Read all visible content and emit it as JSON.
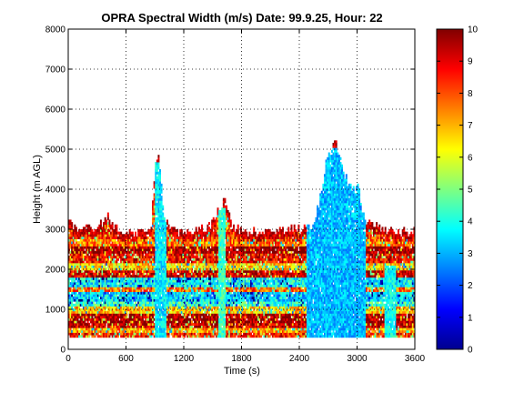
{
  "chart_data": {
    "type": "heatmap",
    "title": "OPRA Spectral Width (m/s)  Date: 99.9.25, Hour: 22",
    "xlabel": "Time (s)",
    "ylabel": "Height (m AGL)",
    "xlim": [
      0,
      3600
    ],
    "ylim": [
      0,
      8000
    ],
    "x_ticks": [
      "0",
      "600",
      "1200",
      "1800",
      "2400",
      "3000",
      "3600"
    ],
    "y_ticks": [
      "0",
      "1000",
      "2000",
      "3000",
      "4000",
      "5000",
      "6000",
      "7000",
      "8000"
    ],
    "grid": true,
    "colorbar": {
      "range": [
        0,
        10
      ],
      "ticks": [
        "0",
        "1",
        "2",
        "3",
        "4",
        "5",
        "6",
        "7",
        "8",
        "9",
        "10"
      ],
      "colormap": "jet"
    },
    "cell": {
      "dt_s": 15,
      "dz_m": 60
    },
    "background_layers": [
      {
        "z_from": 300,
        "z_to": 400,
        "value": 8.5
      },
      {
        "z_from": 400,
        "z_to": 540,
        "value": 7.2
      },
      {
        "z_from": 540,
        "z_to": 660,
        "value": 9.3
      },
      {
        "z_from": 660,
        "z_to": 900,
        "value": 9.7
      },
      {
        "z_from": 900,
        "z_to": 1050,
        "value": 6.8
      },
      {
        "z_from": 1050,
        "z_to": 1200,
        "value": 4.2
      },
      {
        "z_from": 1200,
        "z_to": 1400,
        "value": 3.4
      },
      {
        "z_from": 1400,
        "z_to": 1560,
        "value": 7.8
      },
      {
        "z_from": 1560,
        "z_to": 1750,
        "value": 3.7
      },
      {
        "z_from": 1750,
        "z_to": 1950,
        "value": 9.2
      },
      {
        "z_from": 1950,
        "z_to": 2150,
        "value": 6.6
      },
      {
        "z_from": 2150,
        "z_to": 2350,
        "value": 8.8
      },
      {
        "z_from": 2350,
        "z_to": 2550,
        "value": 9.8
      },
      {
        "z_from": 2550,
        "z_to": 2750,
        "value": 7.6
      },
      {
        "z_from": 2750,
        "z_to": 2950,
        "value": 8.2
      },
      {
        "z_from": 2950,
        "z_to": 3150,
        "value": 7.4
      }
    ],
    "echo_top_profile_m": [
      [
        0,
        3100
      ],
      [
        120,
        2950
      ],
      [
        300,
        3050
      ],
      [
        420,
        3300
      ],
      [
        480,
        3000
      ],
      [
        700,
        2900
      ],
      [
        860,
        3000
      ],
      [
        900,
        4500
      ],
      [
        930,
        4950
      ],
      [
        960,
        4400
      ],
      [
        1000,
        3100
      ],
      [
        1100,
        2950
      ],
      [
        1300,
        2900
      ],
      [
        1500,
        3100
      ],
      [
        1560,
        3500
      ],
      [
        1620,
        3700
      ],
      [
        1700,
        3000
      ],
      [
        1900,
        2900
      ],
      [
        2200,
        2950
      ],
      [
        2380,
        3000
      ],
      [
        2470,
        2950
      ],
      [
        2540,
        3100
      ],
      [
        2620,
        3800
      ],
      [
        2680,
        4700
      ],
      [
        2730,
        4850
      ],
      [
        2770,
        5200
      ],
      [
        2820,
        4700
      ],
      [
        2880,
        4300
      ],
      [
        2960,
        3900
      ],
      [
        3010,
        4050
      ],
      [
        3060,
        3300
      ],
      [
        3150,
        3100
      ],
      [
        3300,
        2950
      ],
      [
        3480,
        2900
      ],
      [
        3600,
        2900
      ]
    ],
    "features": [
      {
        "kind": "plume",
        "t_from": 900,
        "t_to": 1015,
        "z_to": 4650,
        "value": 3.6
      },
      {
        "kind": "plume",
        "t_from": 1550,
        "t_to": 1625,
        "z_to": 3500,
        "value": 4.3
      },
      {
        "kind": "plume",
        "t_from": 2470,
        "t_to": 3080,
        "z_to": 5000,
        "value": 3.1
      },
      {
        "kind": "plume",
        "t_from": 3280,
        "t_to": 3400,
        "z_to": 2100,
        "value": 3.8
      }
    ]
  }
}
